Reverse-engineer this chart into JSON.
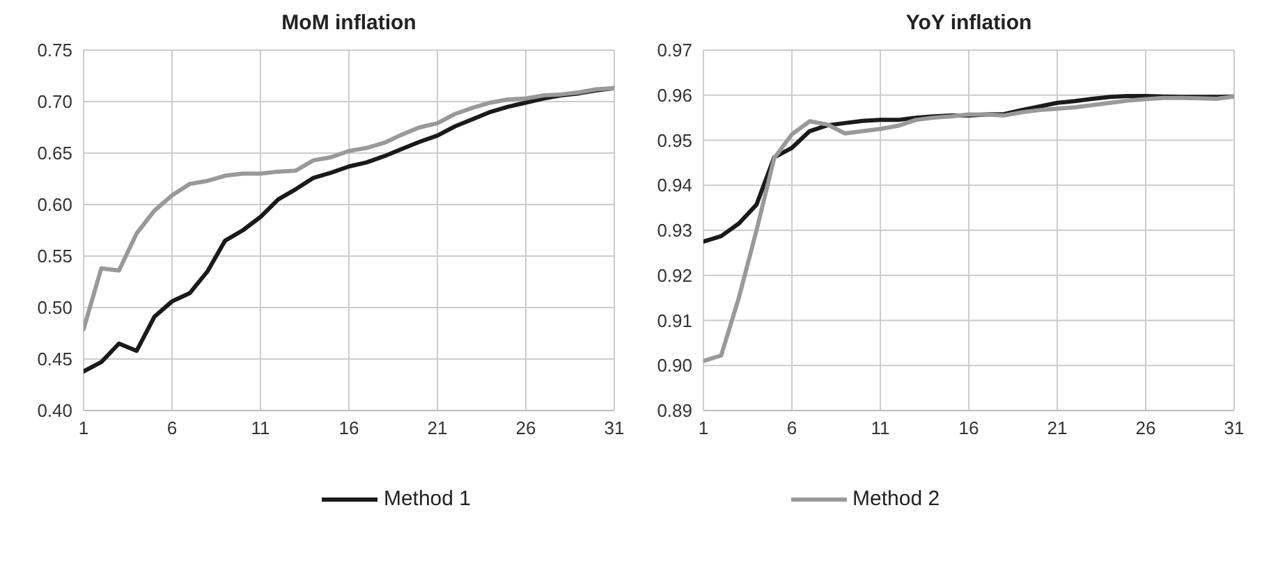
{
  "chart_data": [
    {
      "type": "line",
      "title": "MoM inflation",
      "legend": "bottom",
      "grid": true,
      "x": [
        1,
        2,
        3,
        4,
        5,
        6,
        7,
        8,
        9,
        10,
        11,
        12,
        13,
        14,
        15,
        16,
        17,
        18,
        19,
        20,
        21,
        22,
        23,
        24,
        25,
        26,
        27,
        28,
        29,
        30,
        31
      ],
      "xlim": [
        1,
        31
      ],
      "xticks": [
        1,
        6,
        11,
        16,
        21,
        26,
        31
      ],
      "ylim": [
        0.4,
        0.75
      ],
      "yticks": [
        {
          "value": 0.4,
          "label": "0.40"
        },
        {
          "value": 0.45,
          "label": "0.45"
        },
        {
          "value": 0.5,
          "label": "0.50"
        },
        {
          "value": 0.55,
          "label": "0.55"
        },
        {
          "value": 0.6,
          "label": "0.60"
        },
        {
          "value": 0.65,
          "label": "0.65"
        },
        {
          "value": 0.7,
          "label": "0.70"
        },
        {
          "value": 0.75,
          "label": "0.75"
        }
      ],
      "series": [
        {
          "name": "Method 1",
          "color": "#1a1a1a",
          "values": [
            0.438,
            0.447,
            0.465,
            0.458,
            0.491,
            0.506,
            0.514,
            0.535,
            0.565,
            0.575,
            0.588,
            0.605,
            0.615,
            0.626,
            0.631,
            0.637,
            0.641,
            0.647,
            0.654,
            0.661,
            0.667,
            0.676,
            0.683,
            0.69,
            0.695,
            0.699,
            0.703,
            0.706,
            0.708,
            0.711,
            0.713
          ]
        },
        {
          "name": "Method 2",
          "color": "#999999",
          "values": [
            0.479,
            0.538,
            0.536,
            0.572,
            0.594,
            0.609,
            0.62,
            0.623,
            0.628,
            0.63,
            0.63,
            0.632,
            0.633,
            0.643,
            0.646,
            0.652,
            0.655,
            0.66,
            0.668,
            0.675,
            0.679,
            0.688,
            0.694,
            0.699,
            0.702,
            0.703,
            0.706,
            0.707,
            0.709,
            0.712,
            0.713
          ]
        }
      ]
    },
    {
      "type": "line",
      "title": "YoY inflation",
      "grid": true,
      "x": [
        1,
        2,
        3,
        4,
        5,
        6,
        7,
        8,
        9,
        10,
        11,
        12,
        13,
        14,
        15,
        16,
        17,
        18,
        19,
        20,
        21,
        22,
        23,
        24,
        25,
        26,
        27,
        28,
        29,
        30,
        31
      ],
      "xlim": [
        1,
        31
      ],
      "xticks": [
        1,
        6,
        11,
        16,
        21,
        26,
        31
      ],
      "ylim": [
        0.89,
        0.97
      ],
      "yticks": [
        0.89,
        {
          "value": 0.9,
          "label": "0.90"
        },
        0.91,
        0.92,
        0.93,
        0.94,
        0.95,
        0.96,
        0.97
      ],
      "series": [
        {
          "color": "#1a1a1a",
          "values": [
            0.9275,
            0.9287,
            0.9315,
            0.9357,
            0.9462,
            0.9483,
            0.952,
            0.9533,
            0.9538,
            0.9543,
            0.9545,
            0.9545,
            0.955,
            0.9553,
            0.9555,
            0.9555,
            0.9557,
            0.9558,
            0.9567,
            0.9575,
            0.9583,
            0.9587,
            0.9592,
            0.9596,
            0.9598,
            0.9598,
            0.9597,
            0.9596,
            0.9596,
            0.9596,
            0.9597
          ]
        },
        {
          "color": "#999999",
          "values": [
            0.901,
            0.9022,
            0.915,
            0.93,
            0.946,
            0.9513,
            0.9542,
            0.9535,
            0.9515,
            0.952,
            0.9525,
            0.9532,
            0.9545,
            0.955,
            0.9553,
            0.9557,
            0.9557,
            0.9555,
            0.9562,
            0.9567,
            0.957,
            0.9573,
            0.9578,
            0.9583,
            0.9588,
            0.9591,
            0.9594,
            0.9594,
            0.9593,
            0.9592,
            0.9597
          ]
        }
      ]
    }
  ]
}
